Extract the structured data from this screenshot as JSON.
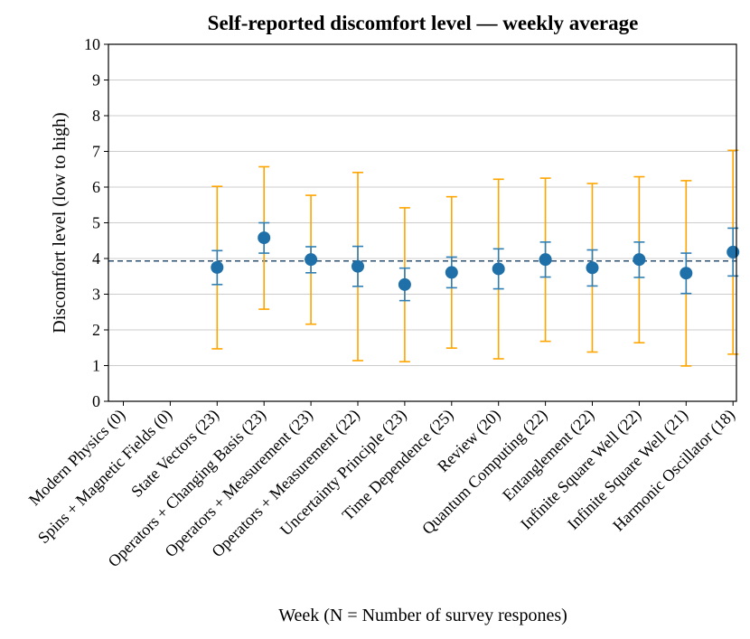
{
  "chart_data": {
    "type": "scatter",
    "title": "Self-reported discomfort level — weekly average",
    "xlabel": "Week (N = Number of survey respones)",
    "ylabel": "Discomfort level (low to high)",
    "ylim": [
      0,
      10
    ],
    "yticks": [
      "0",
      "1",
      "2",
      "3",
      "4",
      "5",
      "6",
      "7",
      "8",
      "9",
      "10"
    ],
    "grid": "horizontal",
    "reference_line": {
      "y": 3.93,
      "style": "dashed"
    },
    "colors": {
      "mean": "#1f6fa8",
      "se": "#2f7fb5",
      "range": "#ffa500",
      "reference": "#2d4f6f",
      "grid": "#cccccc"
    },
    "categories": [
      "Modern Physics (0)",
      "Spins + Magnetic Fields (0)",
      "State Vectors (23)",
      "Operators + Changing Basis (23)",
      "Operators + Measurement (23)",
      "Operators + Measurement (22)",
      "Uncertainty Principle (23)",
      "Time Dependence (25)",
      "Review (20)",
      "Quantum Computing (22)",
      "Entanglement (22)",
      "Infinite Square Well (22)",
      "Infinite Square Well (21)",
      "Harmonic Oscillator (18)"
    ],
    "series": [
      {
        "name": "mean",
        "values": [
          null,
          null,
          3.75,
          4.58,
          3.97,
          3.78,
          3.27,
          3.61,
          3.71,
          3.97,
          3.74,
          3.97,
          3.59,
          4.18
        ]
      },
      {
        "name": "se_lower",
        "values": [
          null,
          null,
          3.27,
          4.15,
          3.6,
          3.22,
          2.82,
          3.18,
          3.15,
          3.48,
          3.23,
          3.47,
          3.02,
          3.51
        ]
      },
      {
        "name": "se_upper",
        "values": [
          null,
          null,
          4.22,
          5.0,
          4.33,
          4.34,
          3.73,
          4.04,
          4.27,
          4.46,
          4.24,
          4.46,
          4.15,
          4.85
        ]
      },
      {
        "name": "range_lower",
        "values": [
          null,
          null,
          1.47,
          2.58,
          2.16,
          1.14,
          1.11,
          1.49,
          1.19,
          1.68,
          1.38,
          1.64,
          0.99,
          1.32
        ]
      },
      {
        "name": "range_upper",
        "values": [
          null,
          null,
          6.02,
          6.57,
          5.77,
          6.41,
          5.42,
          5.73,
          6.22,
          6.25,
          6.1,
          6.29,
          6.18,
          7.03
        ]
      }
    ]
  }
}
